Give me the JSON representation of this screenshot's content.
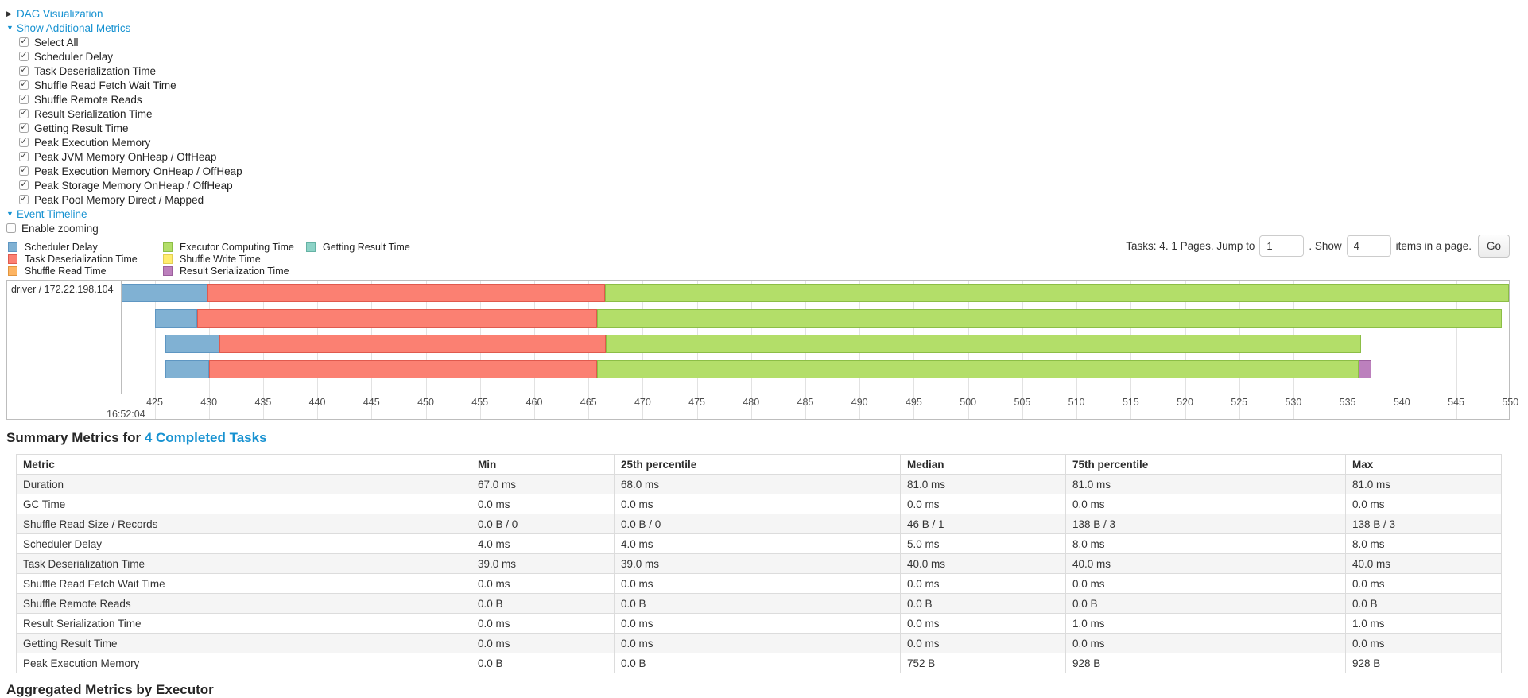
{
  "toggles": {
    "dag": "DAG Visualization",
    "metrics": "Show Additional Metrics",
    "timeline": "Event Timeline"
  },
  "metrics_panel": {
    "items": [
      {
        "label": "Select All",
        "checked": true
      },
      {
        "label": "Scheduler Delay",
        "checked": true
      },
      {
        "label": "Task Deserialization Time",
        "checked": true
      },
      {
        "label": "Shuffle Read Fetch Wait Time",
        "checked": true
      },
      {
        "label": "Shuffle Remote Reads",
        "checked": true
      },
      {
        "label": "Result Serialization Time",
        "checked": true
      },
      {
        "label": "Getting Result Time",
        "checked": true
      },
      {
        "label": "Peak Execution Memory",
        "checked": true
      },
      {
        "label": "Peak JVM Memory OnHeap / OffHeap",
        "checked": true
      },
      {
        "label": "Peak Execution Memory OnHeap / OffHeap",
        "checked": true
      },
      {
        "label": "Peak Storage Memory OnHeap / OffHeap",
        "checked": true
      },
      {
        "label": "Peak Pool Memory Direct / Mapped",
        "checked": true
      }
    ]
  },
  "enable_zooming": {
    "label": "Enable zooming",
    "checked": false
  },
  "legend": {
    "columns": [
      [
        {
          "label": "Scheduler Delay",
          "key": "scheduler_delay"
        },
        {
          "label": "Task Deserialization Time",
          "key": "task_deserialization"
        },
        {
          "label": "Shuffle Read Time",
          "key": "shuffle_read"
        }
      ],
      [
        {
          "label": "Executor Computing Time",
          "key": "executor_computing"
        },
        {
          "label": "Shuffle Write Time",
          "key": "shuffle_write"
        },
        {
          "label": "Result Serialization Time",
          "key": "result_serialization"
        }
      ],
      [
        {
          "label": "Getting Result Time",
          "key": "getting_result"
        }
      ]
    ]
  },
  "pagination": {
    "tasks_text": "Tasks: 4. 1 Pages. Jump to",
    "jump_value": "1",
    "show_label": ". Show",
    "show_value": "4",
    "items_text": "items in a page.",
    "go_label": "Go"
  },
  "chart_data": {
    "type": "timeline",
    "group_label": "driver / 172.22.198.104",
    "axis": {
      "window_min": 421.96,
      "window_max": 549.87,
      "tick_min": 425,
      "tick_max": 550,
      "tick_step": 5,
      "major_label": "16:52:04"
    },
    "colors": {
      "scheduler_delay": {
        "fill": "#80B1D3",
        "border": "#5E96C2"
      },
      "task_deserialization": {
        "fill": "#FB8072",
        "border": "#E05A4E"
      },
      "shuffle_read": {
        "fill": "#FDB462",
        "border": "#E0953F"
      },
      "executor_computing": {
        "fill": "#B3DE69",
        "border": "#8CBE46"
      },
      "shuffle_write": {
        "fill": "#FFED6F",
        "border": "#E3CE53"
      },
      "result_serialization": {
        "fill": "#BC80BD",
        "border": "#9C5F9D"
      },
      "getting_result": {
        "fill": "#8DD3C7",
        "border": "#65B2A4"
      }
    },
    "tasks": [
      {
        "segments": [
          {
            "key": "scheduler_delay",
            "from": 421.96,
            "to": 429.9
          },
          {
            "key": "task_deserialization",
            "from": 429.9,
            "to": 466.5
          },
          {
            "key": "executor_computing",
            "from": 466.5,
            "to": 549.87
          }
        ]
      },
      {
        "segments": [
          {
            "key": "scheduler_delay",
            "from": 425.0,
            "to": 428.9
          },
          {
            "key": "task_deserialization",
            "from": 428.9,
            "to": 465.8
          },
          {
            "key": "executor_computing",
            "from": 465.8,
            "to": 549.2
          }
        ]
      },
      {
        "segments": [
          {
            "key": "scheduler_delay",
            "from": 426.0,
            "to": 431.0
          },
          {
            "key": "task_deserialization",
            "from": 431.0,
            "to": 466.6
          },
          {
            "key": "executor_computing",
            "from": 466.6,
            "to": 536.2
          }
        ]
      },
      {
        "segments": [
          {
            "key": "scheduler_delay",
            "from": 426.0,
            "to": 430.0
          },
          {
            "key": "task_deserialization",
            "from": 430.0,
            "to": 465.8
          },
          {
            "key": "executor_computing",
            "from": 465.8,
            "to": 536.0
          },
          {
            "key": "result_serialization",
            "from": 536.0,
            "to": 537.2
          }
        ]
      }
    ]
  },
  "summary": {
    "title_prefix": "Summary Metrics for ",
    "title_link": "4 Completed Tasks",
    "headers": [
      "Metric",
      "Min",
      "25th percentile",
      "Median",
      "75th percentile",
      "Max"
    ],
    "rows": [
      {
        "metric": "Duration",
        "values": [
          "67.0 ms",
          "68.0 ms",
          "81.0 ms",
          "81.0 ms",
          "81.0 ms"
        ]
      },
      {
        "metric": "GC Time",
        "values": [
          "0.0 ms",
          "0.0 ms",
          "0.0 ms",
          "0.0 ms",
          "0.0 ms"
        ]
      },
      {
        "metric": "Shuffle Read Size / Records",
        "values": [
          "0.0 B / 0",
          "0.0 B / 0",
          "46 B / 1",
          "138 B / 3",
          "138 B / 3"
        ]
      },
      {
        "metric": "Scheduler Delay",
        "values": [
          "4.0 ms",
          "4.0 ms",
          "5.0 ms",
          "8.0 ms",
          "8.0 ms"
        ]
      },
      {
        "metric": "Task Deserialization Time",
        "values": [
          "39.0 ms",
          "39.0 ms",
          "40.0 ms",
          "40.0 ms",
          "40.0 ms"
        ]
      },
      {
        "metric": "Shuffle Read Fetch Wait Time",
        "values": [
          "0.0 ms",
          "0.0 ms",
          "0.0 ms",
          "0.0 ms",
          "0.0 ms"
        ]
      },
      {
        "metric": "Shuffle Remote Reads",
        "values": [
          "0.0 B",
          "0.0 B",
          "0.0 B",
          "0.0 B",
          "0.0 B"
        ]
      },
      {
        "metric": "Result Serialization Time",
        "values": [
          "0.0 ms",
          "0.0 ms",
          "0.0 ms",
          "1.0 ms",
          "1.0 ms"
        ]
      },
      {
        "metric": "Getting Result Time",
        "values": [
          "0.0 ms",
          "0.0 ms",
          "0.0 ms",
          "0.0 ms",
          "0.0 ms"
        ]
      },
      {
        "metric": "Peak Execution Memory",
        "values": [
          "0.0 B",
          "0.0 B",
          "752 B",
          "928 B",
          "928 B"
        ]
      }
    ]
  },
  "partial_next_heading": "Aggregated Metrics by Executor"
}
